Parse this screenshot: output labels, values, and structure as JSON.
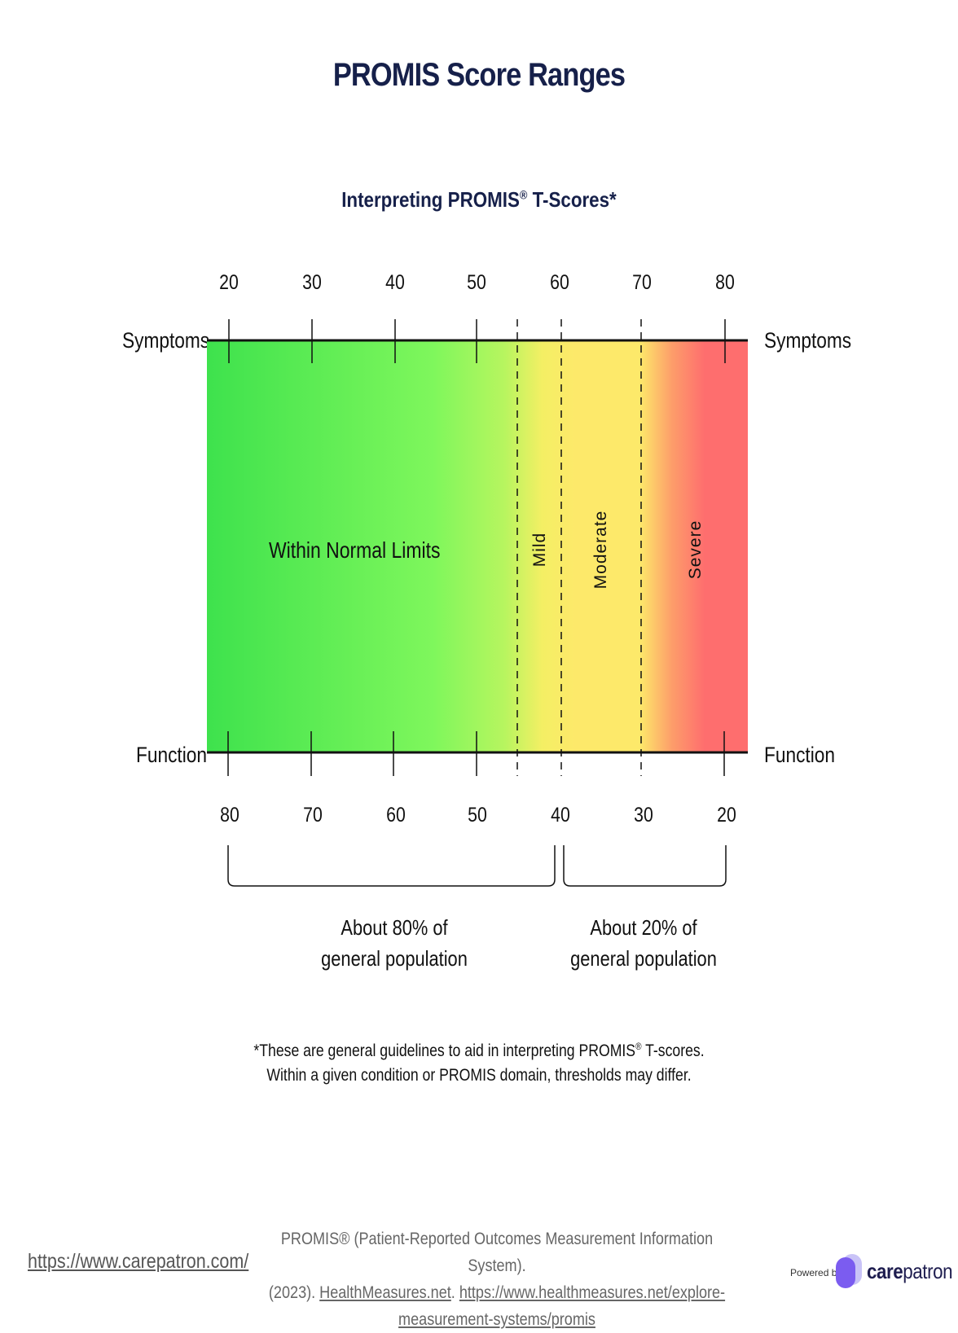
{
  "title": "PROMIS Score Ranges",
  "subtitle": {
    "text": "Interpreting PROMIS",
    "reg": "®",
    "suffix": " T-Scores*"
  },
  "axes": {
    "symptoms_label": "Symptoms",
    "function_label": "Function",
    "top_ticks": [
      "20",
      "30",
      "40",
      "50",
      "60",
      "70",
      "80"
    ],
    "bottom_ticks": [
      "80",
      "70",
      "60",
      "50",
      "40",
      "30",
      "20"
    ]
  },
  "bands": {
    "normal": "Within Normal Limits",
    "mild": "Mild",
    "moderate": "Moderate",
    "severe": "Severe"
  },
  "colors": {
    "green": "#3ee24d",
    "light_green": "#a8f55f",
    "yellow": "#fde96a",
    "orange": "#fd9d6a",
    "red": "#fe6e6e",
    "title": "#16204a"
  },
  "population": {
    "left_line1": "About 80% of",
    "left_line2": "general population",
    "right_line1": "About 20% of",
    "right_line2": "general population"
  },
  "footnote": {
    "line1_pre": "*These are general guidelines to aid in interpreting PROMIS",
    "line1_reg": "®",
    "line1_post": " T-scores.",
    "line2": "Within a given condition or PROMIS domain, thresholds may differ."
  },
  "citation": {
    "line1": "PROMIS® (Patient-Reported Outcomes Measurement Information System).",
    "line2_prefix": "(2023). ",
    "link1": "HealthMeasures.net",
    "sep": ". ",
    "link2": "https://www.healthmeasures.net/explore-measurement-systems/promis"
  },
  "footer": {
    "site_link": "https://www.carepatron.com/",
    "powered_by": "Powered by",
    "brand_bold": "care",
    "brand_rest": "patron"
  }
}
